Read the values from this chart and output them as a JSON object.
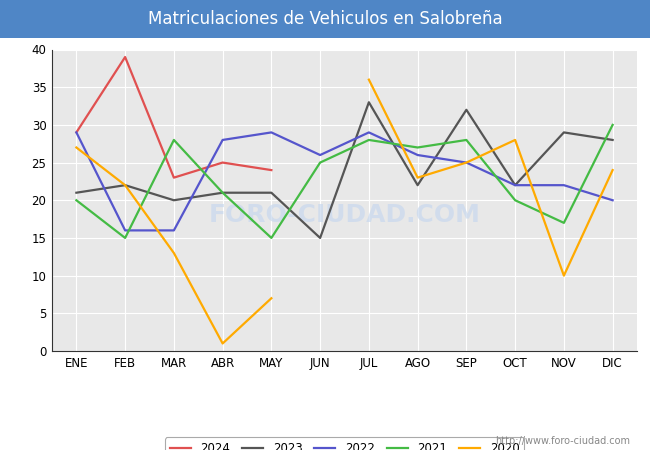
{
  "title": "Matriculaciones de Vehiculos en Salobreña",
  "months": [
    "ENE",
    "FEB",
    "MAR",
    "ABR",
    "MAY",
    "JUN",
    "JUL",
    "AGO",
    "SEP",
    "OCT",
    "NOV",
    "DIC"
  ],
  "series": {
    "2024": {
      "data": [
        29,
        39,
        23,
        25,
        24,
        null,
        null,
        null,
        null,
        null,
        null,
        null
      ],
      "color": "#e05050",
      "linewidth": 1.6
    },
    "2023": {
      "data": [
        21,
        22,
        20,
        21,
        21,
        15,
        33,
        22,
        32,
        22,
        29,
        28
      ],
      "color": "#555555",
      "linewidth": 1.6
    },
    "2022": {
      "data": [
        29,
        16,
        16,
        28,
        29,
        26,
        29,
        26,
        25,
        22,
        22,
        20
      ],
      "color": "#5555cc",
      "linewidth": 1.6
    },
    "2021": {
      "data": [
        20,
        15,
        28,
        21,
        15,
        25,
        28,
        27,
        28,
        20,
        17,
        30
      ],
      "color": "#44bb44",
      "linewidth": 1.6
    },
    "2020": {
      "data": [
        27,
        22,
        13,
        1,
        7,
        null,
        36,
        23,
        25,
        28,
        10,
        24
      ],
      "color": "#ffaa00",
      "linewidth": 1.6
    }
  },
  "ylim": [
    0,
    40
  ],
  "yticks": [
    0,
    5,
    10,
    15,
    20,
    25,
    30,
    35,
    40
  ],
  "fig_bg_color": "#ffffff",
  "plot_bg_color": "#e8e8e8",
  "title_bg_color": "#4f86c6",
  "title_color": "#ffffff",
  "title_fontsize": 12,
  "grid_color": "#ffffff",
  "watermark": "FORO-CIUDAD.COM",
  "watermark_color": "#c8d8ee",
  "url": "http://www.foro-ciudad.com",
  "year_order": [
    "2024",
    "2023",
    "2022",
    "2021",
    "2020"
  ]
}
